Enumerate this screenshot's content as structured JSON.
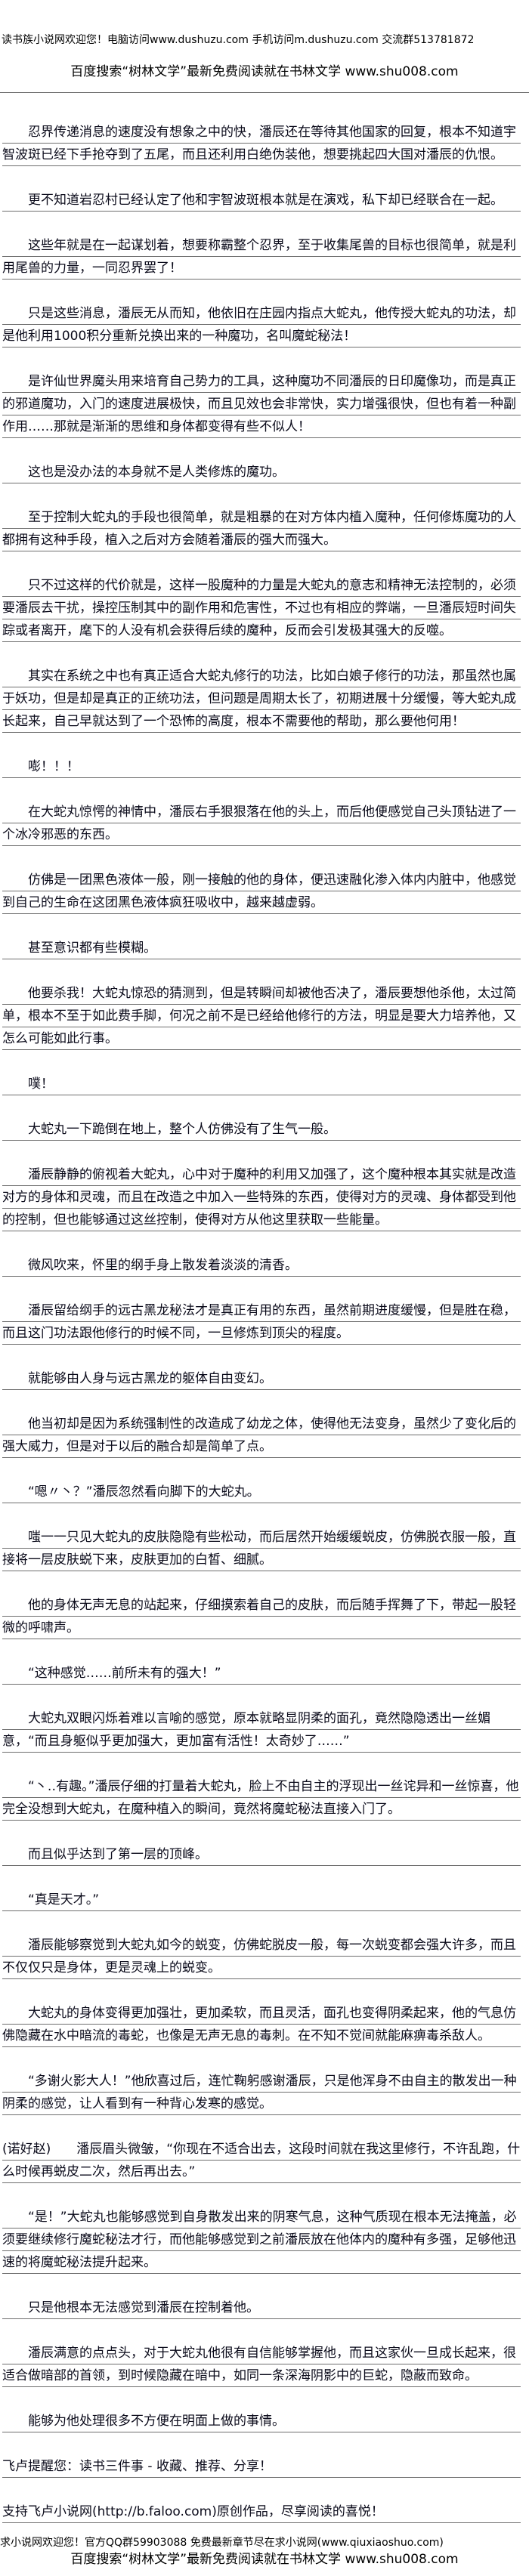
{
  "header": {
    "site_welcome": "读书族小说网欢迎您！电脑访问www.dushuzu.com 手机访问m.dushuzu.com 交流群513781872",
    "search_promo": "百度搜索“树林文学”最新免费阅读就在书林文学 www.shu008.com"
  },
  "paragraphs": [
    {
      "text": "忍界传递消息的速度没有想象之中的快，潘辰还在等待其他国家的回复，根本不知道宇智波斑已经下手抢夺到了五尾，而且还利用白绝伪装他，想要挑起四大国对潘辰的仇恨。",
      "indent": true
    },
    {
      "text": "更不知道岩忍村已经认定了他和宇智波斑根本就是在演戏，私下却已经联合在一起。",
      "indent": true
    },
    {
      "text": "这些年就是在一起谋划着，想要称霸整个忍界，至于收集尾兽的目标也很简单，就是利用尾兽的力量，一同忍界罢了！",
      "indent": true
    },
    {
      "text": "只是这些消息，潘辰无从而知，他依旧在庄园内指点大蛇丸，他传授大蛇丸的功法，却是他利用1000积分重新兑换出来的一种魔功，名叫魔蛇秘法！",
      "indent": true
    },
    {
      "text": "是许仙世界魔头用来培育自己势力的工具，这种魔功不同潘辰的日印魔像功，而是真正的邪道魔功，入门的速度进展极快，而且见效也会非常快，实力增强很快，但也有着一种副作用……那就是渐渐的思维和身体都变得有些不似人！",
      "indent": true
    },
    {
      "text": "这也是没办法的本身就不是人类修炼的魔功。",
      "indent": true
    },
    {
      "text": "至于控制大蛇丸的手段也很简单，就是粗暴的在对方体内植入魔种，任何修炼魔功的人都拥有这种手段，植入之后对方会随着潘辰的强大而强大。",
      "indent": true
    },
    {
      "text": "只不过这样的代价就是，这样一股魔种的力量是大蛇丸的意志和精神无法控制的，必须要潘辰去干扰，操控压制其中的副作用和危害性，不过也有相应的弊端，一旦潘辰短时间失踪或者离开，麾下的人没有机会获得后续的魔种，反而会引发极其强大的反噬。",
      "indent": true
    },
    {
      "text": "其实在系统之中也有真正适合大蛇丸修行的功法，比如白娘子修行的功法，那虽然也属于妖功，但是却是真正的正统功法，但问题是周期太长了，初期进展十分缓慢，等大蛇丸成长起来，自己早就达到了一个恐怖的高度，根本不需要他的帮助，那么要他何用！",
      "indent": true
    },
    {
      "text": "嘭！！！",
      "indent": true
    },
    {
      "text": "在大蛇丸惊愕的神情中，潘辰右手狠狠落在他的头上，而后他便感觉自己头顶钻进了一个冰冷邪恶的东西。",
      "indent": true
    },
    {
      "text": "仿佛是一团黑色液体一般，刚一接触的他的身体，便迅速融化渗入体内内脏中，他感觉到自己的生命在这团黑色液体疯狂吸收中，越来越虚弱。",
      "indent": true
    },
    {
      "text": "甚至意识都有些模糊。",
      "indent": true
    },
    {
      "text": "他要杀我！大蛇丸惊恐的猜测到，但是转瞬间却被他否决了，潘辰要想他杀他，太过简单，根本不至于如此费手脚，何况之前不是已经给他修行的方法，明显是要大力培养他，又怎么可能如此行事。",
      "indent": true
    },
    {
      "text": "噗！",
      "indent": true
    },
    {
      "text": "大蛇丸一下跪倒在地上，整个人仿佛没有了生气一般。",
      "indent": true
    },
    {
      "text": "潘辰静静的俯视着大蛇丸，心中对于魔种的利用又加强了，这个魔种根本其实就是改造对方的身体和灵魂，而且在改造之中加入一些特殊的东西，使得对方的灵魂、身体都受到他的控制，但也能够通过这丝控制，使得对方从他这里获取一些能量。",
      "indent": true
    },
    {
      "text": "微风吹来，怀里的纲手身上散发着淡淡的清香。",
      "indent": true
    },
    {
      "text": "潘辰留给纲手的远古黑龙秘法才是真正有用的东西，虽然前期进度缓慢，但是胜在稳，而且这门功法跟他修行的时候不同，一旦修炼到顶尖的程度。",
      "indent": true
    },
    {
      "text": "就能够由人身与远古黑龙的躯体自由变幻。",
      "indent": true
    },
    {
      "text": "他当初却是因为系统强制性的改造成了幼龙之体，使得他无法变身，虽然少了变化后的强大威力，但是对于以后的融合却是简单了点。",
      "indent": true
    },
    {
      "text": "“嗯〃丶？”潘辰忽然看向脚下的大蛇丸。",
      "indent": true
    },
    {
      "text": "嗤一一只见大蛇丸的皮肤隐隐有些松动，而后居然开始缓缓蜕皮，仿佛脱衣服一般，直接将一层皮肤蜕下来，皮肤更加的白皙、细腻。",
      "indent": true
    },
    {
      "text": "他的身体无声无息的站起来，仔细摸索着自己的皮肤，而后随手挥舞了下，带起一股轻微的呼啸声。",
      "indent": true
    },
    {
      "text": "“这种感觉……前所未有的强大！”",
      "indent": true
    },
    {
      "text": "大蛇丸双眼闪烁着难以言喻的感觉，原本就略显阴柔的面孔，竟然隐隐透出一丝媚意，“而且身躯似乎更加强大，更加富有活性！太奇妙了……”",
      "indent": true
    },
    {
      "text": "“丶‥有趣。”潘辰仔细的打量着大蛇丸，脸上不由自主的浮现出一丝诧异和一丝惊喜，他完全没想到大蛇丸，在魔种植入的瞬间，竟然将魔蛇秘法直接入门了。",
      "indent": true
    },
    {
      "text": "而且似乎达到了第一层的顶峰。",
      "indent": true
    },
    {
      "text": "“真是天才。”",
      "indent": true
    },
    {
      "text": "潘辰能够察觉到大蛇丸如今的蜕变，仿佛蛇脱皮一般，每一次蜕变都会强大许多，而且不仅仅只是身体，更是灵魂上的蜕变。",
      "indent": true
    },
    {
      "text": "大蛇丸的身体变得更加强壮，更加柔软，而且灵活，面孔也变得阴柔起来，他的气息仿佛隐藏在水中暗流的毒蛇，也像是无声无息的毒刺。在不知不觉间就能麻痹毒杀敌人。",
      "indent": true
    },
    {
      "text": "“多谢火影大人！”他欣喜过后，连忙鞠躬感谢潘辰，只是他浑身不由自主的散发出一种阴柔的感觉，让人看到有一种背心发寒的感觉。",
      "indent": true
    },
    {
      "text": "(诺好赵)　　潘辰眉头微皱，“你现在不适合出去，这段时间就在我这里修行，不许乱跑，什么时候再蜕皮二次，然后再出去。”",
      "indent": false
    },
    {
      "text": "“是！”大蛇丸也能够感觉到自身散发出来的阴寒气息，这种气质现在根本无法掩盖，必须要继续修行魔蛇秘法才行，而他能够感觉到之前潘辰放在他体内的魔种有多强，足够他迅速的将魔蛇秘法提升起来。",
      "indent": true
    },
    {
      "text": "只是他根本无法感觉到潘辰在控制着他。",
      "indent": true
    },
    {
      "text": "潘辰满意的点点头，对于大蛇丸他很有自信能够掌握他，而且这家伙一旦成长起来，很适合做暗部的首领，到时候隐藏在暗中，如同一条深海阴影中的巨蛇，隐蔽而致命。",
      "indent": true
    },
    {
      "text": "能够为他处理很多不方便在明面上做的事情。",
      "indent": true
    },
    {
      "text": "飞卢提醒您：读书三件事 - 收藏、推荐、分享！",
      "indent": false
    },
    {
      "text": "支持飞卢小说网(http://b.faloo.com)原创作品，尽享阅读的喜悦！",
      "indent": false
    }
  ],
  "footer": {
    "site_welcome": "求小说网欢迎您！官方QQ群59903088 免费最新章节尽在求小说网(www.qiuxiaoshuo.com)",
    "search_promo": "百度搜索“树林文学”最新免费阅读就在书林文学 www.shu008.com"
  },
  "colors": {
    "text": "#000000",
    "rule": "#6e6e6e",
    "background": "#ffffff"
  }
}
